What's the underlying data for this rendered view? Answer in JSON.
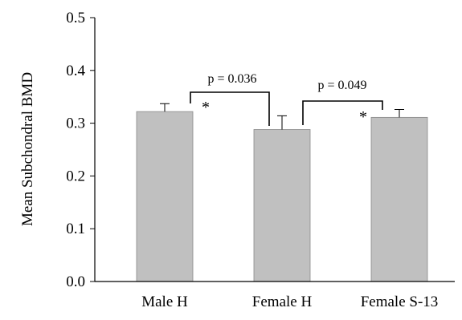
{
  "chart_data": {
    "type": "bar",
    "title": "",
    "xlabel": "",
    "ylabel": "Mean Subchondral BMD",
    "categories": [
      "Male H",
      "Female H",
      "Female S-13"
    ],
    "values": [
      0.322,
      0.288,
      0.311
    ],
    "errors": [
      0.015,
      0.026,
      0.015
    ],
    "ylim": [
      0.0,
      0.5
    ],
    "yticks": [
      "0.0",
      "0.1",
      "0.2",
      "0.3",
      "0.4",
      "0.5"
    ],
    "grid": false,
    "legend": "none",
    "bar_color": "#c0c0c0",
    "annotations": [
      {
        "label": "p = 0.036",
        "from": "Male H",
        "to": "Female H"
      },
      {
        "label": "p = 0.049",
        "from": "Female H",
        "to": "Female S-13"
      }
    ],
    "markers": [
      {
        "text": "*",
        "category": "Male H"
      },
      {
        "text": "*",
        "category": "Female S-13"
      }
    ]
  }
}
